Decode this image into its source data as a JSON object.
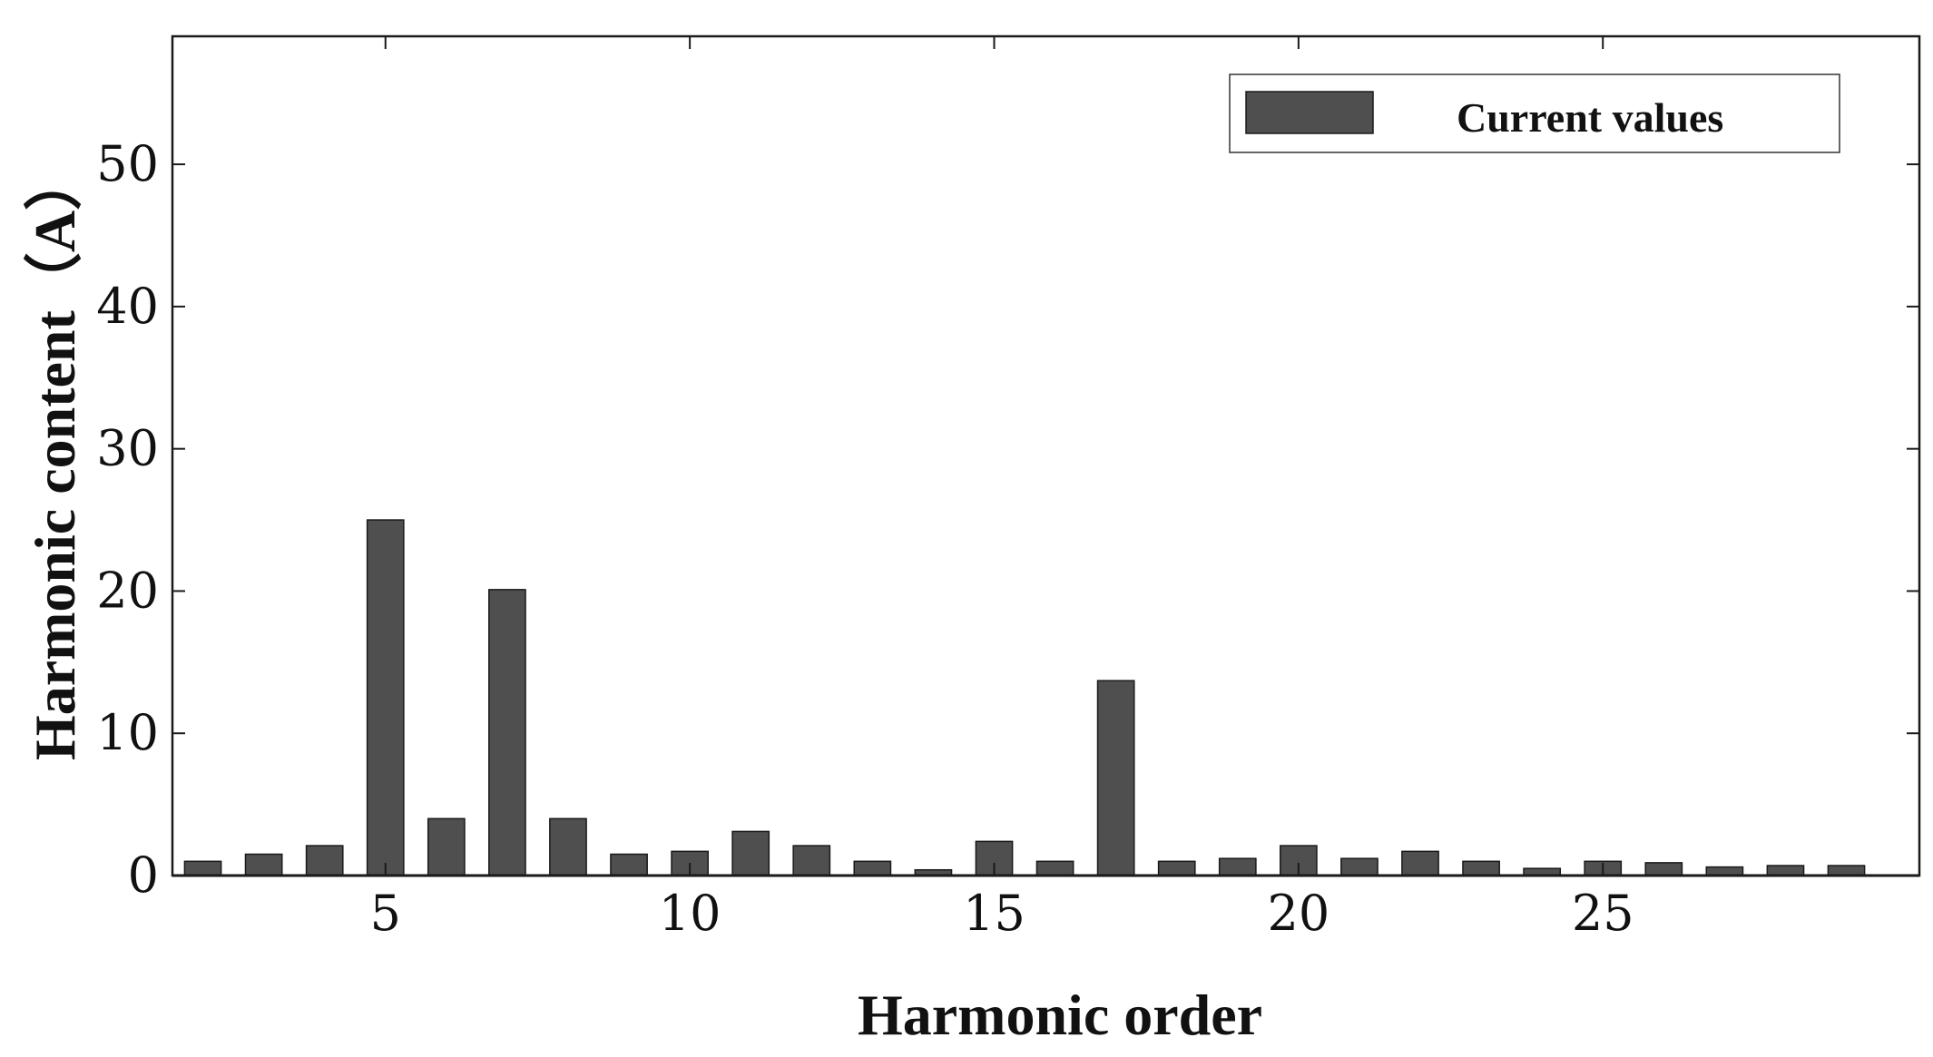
{
  "chart_data": {
    "type": "bar",
    "title": "",
    "xlabel": "Harmonic order",
    "ylabel": "Harmonic content（A）",
    "categories": [
      2,
      3,
      4,
      5,
      6,
      7,
      8,
      9,
      10,
      11,
      12,
      13,
      14,
      15,
      16,
      17,
      18,
      19,
      20,
      21,
      22,
      23,
      24,
      25,
      26,
      27,
      28,
      29
    ],
    "series": [
      {
        "name": "Current values",
        "values": [
          1.0,
          1.5,
          2.1,
          25.0,
          4.0,
          20.1,
          4.0,
          1.5,
          1.7,
          3.1,
          2.1,
          1.0,
          0.4,
          2.4,
          1.0,
          13.7,
          1.0,
          1.2,
          2.1,
          1.2,
          1.7,
          1.0,
          0.5,
          1.0,
          0.9,
          0.6,
          0.7,
          0.7
        ]
      }
    ],
    "xlim": [
      1.5,
      30.2
    ],
    "ylim": [
      0,
      59
    ],
    "xticks": [
      5,
      10,
      15,
      20,
      25
    ],
    "yticks": [
      0,
      10,
      20,
      30,
      40,
      50
    ],
    "x_tick_labels": [
      "5",
      "10",
      "15",
      "20",
      "25"
    ],
    "y_tick_labels": [
      "0",
      "10",
      "20",
      "30",
      "40",
      "50"
    ],
    "grid": false,
    "legend_position": "top-right",
    "colors": {
      "bar_fill": "#4f4f4f",
      "bar_edge": "#1a1a1a",
      "axis": "#1a1a1a",
      "text": "#111111"
    }
  }
}
